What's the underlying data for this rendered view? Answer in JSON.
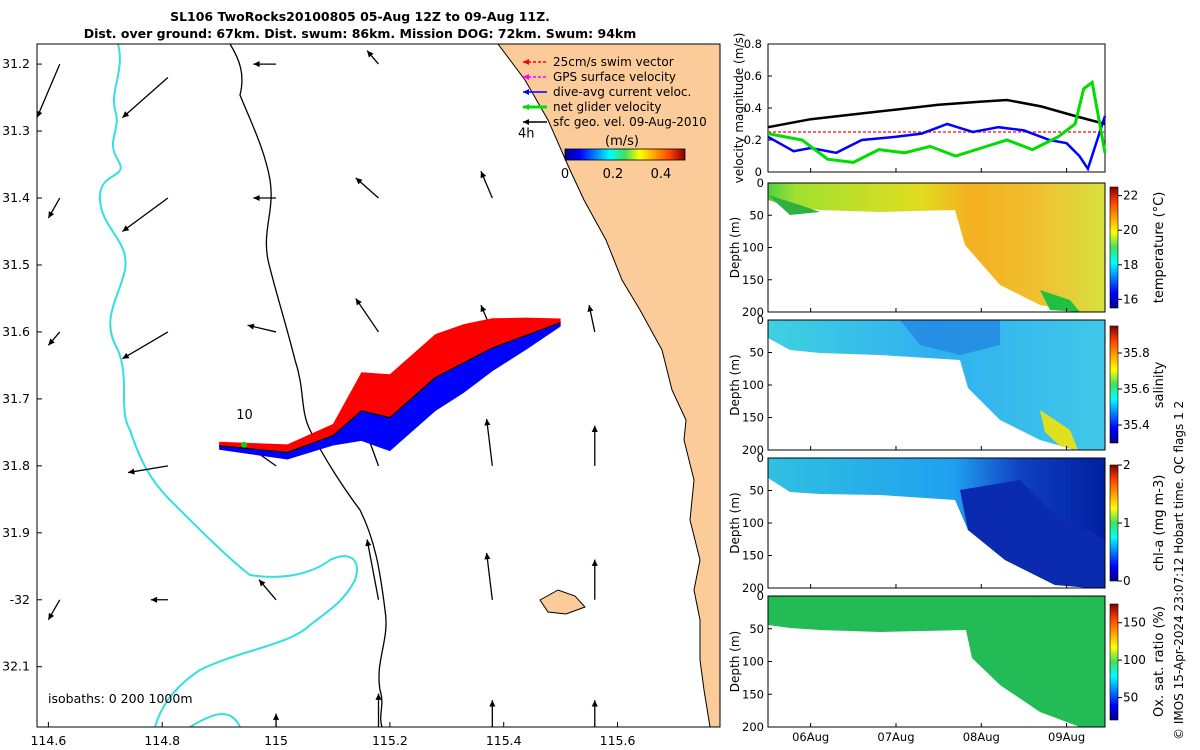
{
  "title_line1": "SL106 TwoRocks20100805 05-Aug 12Z to 09-Aug 11Z.",
  "title_line2": "Dist. over ground: 67km. Dist. swum: 86km. Mission DOG: 72km. Swum: 94km",
  "footnote": "© IMOS 15-Apr-2024 23:07:12 Hobart time. QC flags 1  2",
  "colors": {
    "land": "#fbcb99",
    "isobath_shallow": "#33e0e0",
    "isobath_deep": "#000000",
    "track_red": "#ff0000",
    "track_blue": "#0000ff",
    "glider": "#00dd00"
  },
  "chart_data": [
    {
      "type": "map",
      "id": "track-map",
      "xlim": [
        114.58,
        115.78
      ],
      "ylim": [
        -32.19,
        -31.17
      ],
      "x_ticks": [
        114.6,
        114.8,
        115,
        115.2,
        115.4,
        115.6
      ],
      "x_tick_labels": [
        "114.6",
        "114.8",
        "115",
        "115.2",
        "115.4",
        "115.6"
      ],
      "y_ticks": [
        -31.2,
        -31.3,
        -31.4,
        -31.5,
        -31.6,
        -31.7,
        -31.8,
        -31.9,
        -32,
        -32.1
      ],
      "y_tick_labels": [
        "31.2",
        "31.3",
        "31.4",
        "31.5",
        "31.6",
        "31.7",
        "31.8",
        "31.9",
        "-32",
        "32.1"
      ],
      "legend": [
        {
          "label": "25cm/s swim vector",
          "color": "#ff0000",
          "style": "dashed-arrow"
        },
        {
          "label": "GPS surface velocity",
          "color": "#ff00ff",
          "style": "dashed-arrow"
        },
        {
          "label": "dive-avg current veloc.",
          "color": "#0000ff",
          "style": "arrow"
        },
        {
          "label": "net glider velocity",
          "color": "#00dd00",
          "style": "arrow"
        },
        {
          "label": "sfc geo. vel. 09-Aug-2010",
          "color": "#000000",
          "style": "arrow"
        }
      ],
      "colorbar": {
        "label": "(m/s)",
        "ticks": [
          0,
          0.2,
          0.4
        ],
        "range": [
          0,
          0.5
        ]
      },
      "annotations": [
        {
          "text": "4h",
          "lon": 115.425,
          "lat": -31.31
        },
        {
          "text": "10",
          "lon": 114.93,
          "lat": -31.73
        }
      ],
      "isobath_label": "isobaths: 0   200  1000m",
      "track": [
        {
          "lon": 114.9,
          "lat": -31.77
        },
        {
          "lon": 115.02,
          "lat": -31.78
        },
        {
          "lon": 115.1,
          "lat": -31.755
        },
        {
          "lon": 115.15,
          "lat": -31.718
        },
        {
          "lon": 115.2,
          "lat": -31.728
        },
        {
          "lon": 115.28,
          "lat": -31.668
        },
        {
          "lon": 115.33,
          "lat": -31.646
        },
        {
          "lon": 115.38,
          "lat": -31.624
        },
        {
          "lon": 115.44,
          "lat": -31.605
        },
        {
          "lon": 115.5,
          "lat": -31.586
        }
      ],
      "currents": [
        {
          "lon": 114.62,
          "lat": -31.2,
          "dlon": -0.04,
          "dlat": -0.08
        },
        {
          "lon": 114.62,
          "lat": -31.4,
          "dlon": -0.02,
          "dlat": -0.03
        },
        {
          "lon": 114.62,
          "lat": -31.6,
          "dlon": -0.02,
          "dlat": -0.02
        },
        {
          "lon": 114.62,
          "lat": -32.0,
          "dlon": -0.02,
          "dlat": -0.03
        },
        {
          "lon": 114.81,
          "lat": -31.22,
          "dlon": -0.08,
          "dlat": -0.06
        },
        {
          "lon": 114.81,
          "lat": -31.4,
          "dlon": -0.08,
          "dlat": -0.05
        },
        {
          "lon": 114.81,
          "lat": -31.6,
          "dlon": -0.08,
          "dlat": -0.04
        },
        {
          "lon": 114.81,
          "lat": -31.8,
          "dlon": -0.07,
          "dlat": -0.01
        },
        {
          "lon": 114.81,
          "lat": -32.0,
          "dlon": -0.03,
          "dlat": 0.0
        },
        {
          "lon": 115.0,
          "lat": -31.2,
          "dlon": -0.04,
          "dlat": 0.0
        },
        {
          "lon": 115.0,
          "lat": -31.4,
          "dlon": -0.04,
          "dlat": 0.0
        },
        {
          "lon": 115.0,
          "lat": -31.6,
          "dlon": -0.05,
          "dlat": 0.01
        },
        {
          "lon": 115.0,
          "lat": -31.8,
          "dlon": -0.05,
          "dlat": 0.03
        },
        {
          "lon": 115.0,
          "lat": -32.0,
          "dlon": -0.03,
          "dlat": 0.03
        },
        {
          "lon": 115.0,
          "lat": -32.2,
          "dlon": 0.0,
          "dlat": 0.03
        },
        {
          "lon": 115.18,
          "lat": -31.2,
          "dlon": -0.02,
          "dlat": 0.02
        },
        {
          "lon": 115.18,
          "lat": -31.4,
          "dlon": -0.04,
          "dlat": 0.03
        },
        {
          "lon": 115.18,
          "lat": -31.6,
          "dlon": -0.04,
          "dlat": 0.05
        },
        {
          "lon": 115.18,
          "lat": -31.8,
          "dlon": -0.03,
          "dlat": 0.07
        },
        {
          "lon": 115.18,
          "lat": -32.0,
          "dlon": -0.02,
          "dlat": 0.09
        },
        {
          "lon": 115.18,
          "lat": -32.2,
          "dlon": 0.0,
          "dlat": 0.06
        },
        {
          "lon": 115.38,
          "lat": -31.4,
          "dlon": -0.02,
          "dlat": 0.04
        },
        {
          "lon": 115.38,
          "lat": -31.6,
          "dlon": -0.02,
          "dlat": 0.04
        },
        {
          "lon": 115.38,
          "lat": -31.8,
          "dlon": -0.01,
          "dlat": 0.07
        },
        {
          "lon": 115.38,
          "lat": -32.0,
          "dlon": -0.01,
          "dlat": 0.07
        },
        {
          "lon": 115.38,
          "lat": -32.2,
          "dlon": 0.0,
          "dlat": 0.05
        },
        {
          "lon": 115.56,
          "lat": -31.6,
          "dlon": -0.01,
          "dlat": 0.04
        },
        {
          "lon": 115.56,
          "lat": -31.8,
          "dlon": 0.0,
          "dlat": 0.06
        },
        {
          "lon": 115.56,
          "lat": -32.0,
          "dlon": 0.0,
          "dlat": 0.06
        },
        {
          "lon": 115.56,
          "lat": -32.2,
          "dlon": 0.0,
          "dlat": 0.05
        }
      ]
    },
    {
      "type": "line",
      "id": "velocity-panel",
      "ylabel": "velocity magnitude (m/s)",
      "xlim": [
        5.5,
        9.45
      ],
      "ylim": [
        0,
        0.8
      ],
      "y_ticks": [
        0,
        0.2,
        0.4,
        0.6,
        0.8
      ],
      "series": [
        {
          "name": "sfc geo. vel.",
          "color": "#000000",
          "x": [
            5.5,
            6.0,
            6.5,
            7.0,
            7.5,
            8.0,
            8.3,
            8.7,
            9.1,
            9.45
          ],
          "y": [
            0.28,
            0.33,
            0.36,
            0.39,
            0.42,
            0.44,
            0.45,
            0.41,
            0.35,
            0.3
          ]
        },
        {
          "name": "25cm/s swim vector",
          "color": "#ff0000",
          "x": [
            5.5,
            9.45
          ],
          "y": [
            0.25,
            0.25
          ]
        },
        {
          "name": "dive-avg current veloc.",
          "color": "#0000ff",
          "x": [
            5.5,
            5.8,
            6.0,
            6.3,
            6.6,
            7.0,
            7.3,
            7.6,
            7.9,
            8.2,
            8.5,
            8.8,
            9.0,
            9.15,
            9.25,
            9.45
          ],
          "y": [
            0.22,
            0.13,
            0.15,
            0.12,
            0.2,
            0.22,
            0.24,
            0.3,
            0.25,
            0.28,
            0.26,
            0.2,
            0.18,
            0.1,
            0.02,
            0.35
          ]
        },
        {
          "name": "net glider velocity",
          "color": "#00dd00",
          "x": [
            5.5,
            5.9,
            6.2,
            6.5,
            6.8,
            7.1,
            7.4,
            7.7,
            8.0,
            8.3,
            8.6,
            8.9,
            9.1,
            9.2,
            9.3,
            9.45
          ],
          "y": [
            0.24,
            0.2,
            0.08,
            0.06,
            0.14,
            0.12,
            0.16,
            0.1,
            0.15,
            0.2,
            0.14,
            0.22,
            0.3,
            0.52,
            0.56,
            0.12
          ]
        }
      ]
    },
    {
      "type": "heatmap",
      "id": "temperature-panel",
      "ylabel": "Depth (m)",
      "colorbar_label": "temperature (°C)",
      "vmin": 15.5,
      "vmax": 22.5,
      "colorbar_ticks": [
        16,
        18,
        20,
        22
      ],
      "ylim": [
        200,
        0
      ],
      "y_ticks": [
        0,
        50,
        100,
        150,
        200
      ]
    },
    {
      "type": "heatmap",
      "id": "salinity-panel",
      "ylabel": "Depth (m)",
      "colorbar_label": "salinity",
      "vmin": 35.3,
      "vmax": 35.95,
      "colorbar_ticks": [
        35.4,
        35.6,
        35.8
      ],
      "colorbar_tick_labels": [
        "35.4",
        "35.6",
        "35.8"
      ],
      "ylim": [
        200,
        0
      ],
      "y_ticks": [
        0,
        50,
        100,
        150,
        200
      ]
    },
    {
      "type": "heatmap",
      "id": "chla-panel",
      "ylabel": "Depth (m)",
      "colorbar_label": "chl-a (mg m-3)",
      "vmin": 0,
      "vmax": 2,
      "colorbar_ticks": [
        0,
        1,
        2
      ],
      "ylim": [
        200,
        0
      ],
      "y_ticks": [
        0,
        50,
        100,
        150,
        200
      ]
    },
    {
      "type": "heatmap",
      "id": "oxygen-panel",
      "ylabel": "Depth (m)",
      "colorbar_label": "Ox. sat. ratio (%)",
      "vmin": 20,
      "vmax": 175,
      "colorbar_ticks": [
        50,
        100,
        150
      ],
      "ylim": [
        200,
        0
      ],
      "y_ticks": [
        0,
        50,
        100,
        150,
        200
      ],
      "x_ticks": [
        6,
        7,
        8,
        9
      ],
      "x_tick_labels": [
        "06Aug",
        "07Aug",
        "08Aug",
        "09Aug"
      ]
    }
  ]
}
